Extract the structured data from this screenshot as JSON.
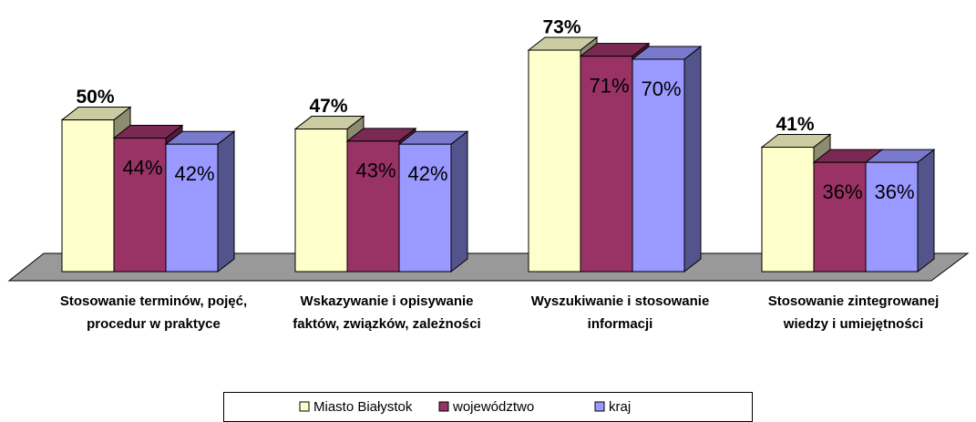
{
  "chart_data": {
    "type": "bar3d",
    "categories": [
      "Stosowanie terminów, pojęć, procedur w praktyce",
      "Wskazywanie i opisywanie faktów, związków, zależności",
      "Wyszukiwanie i stosowanie informacji",
      "Stosowanie zintegrowanej wiedzy i umiejętności"
    ],
    "series": [
      {
        "name": "Miasto Białystok",
        "color": "#ffffcc",
        "values": [
          50,
          47,
          73,
          41
        ],
        "value_labels": [
          "50%",
          "47%",
          "73%",
          "41%"
        ]
      },
      {
        "name": "województwo",
        "color": "#993366",
        "values": [
          44,
          43,
          71,
          36
        ],
        "value_labels": [
          "44%",
          "43%",
          "71%",
          "36%"
        ]
      },
      {
        "name": "kraj",
        "color": "#9999ff",
        "values": [
          42,
          42,
          70,
          36
        ],
        "value_labels": [
          "42%",
          "42%",
          "70%",
          "36%"
        ]
      }
    ],
    "legend": "bottom"
  }
}
